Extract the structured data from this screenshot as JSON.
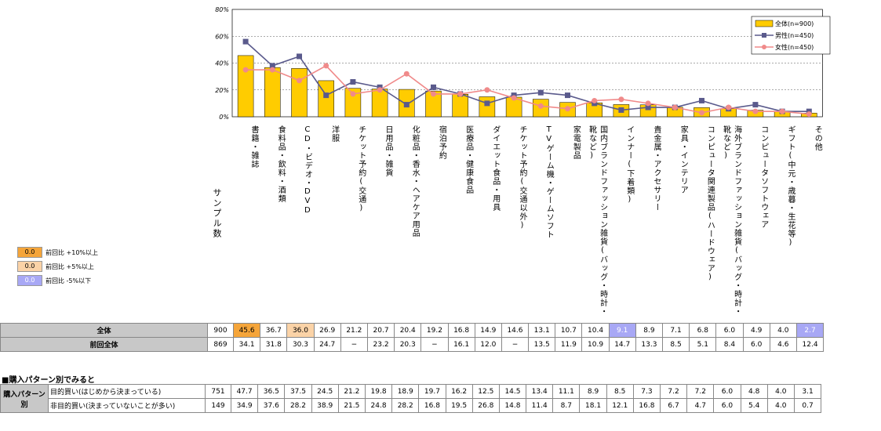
{
  "colors": {
    "bar": "#FFCC00",
    "male": "#5A5A8C",
    "female": "#F08A8A",
    "up10": "#F5A53A",
    "up5": "#FBD3A7",
    "down5": "#A8A8F5",
    "rowhead": "#C8C8C8"
  },
  "legend": {
    "total": "全体(n=900)",
    "male": "男性(n=450)",
    "female": "女性(n=450)"
  },
  "yticks": [
    "80%",
    "60%",
    "40%",
    "20%",
    "0%"
  ],
  "sample_label": "サンプル数",
  "highlight_legend": [
    {
      "value": "0.0",
      "label": "前回比 +10%以上"
    },
    {
      "value": "0.0",
      "label": "前回比 +5%以上"
    },
    {
      "value": "0.0",
      "label": "前回比 -5%以下"
    }
  ],
  "chart_data": {
    "type": "bar",
    "ylim": [
      0,
      80
    ],
    "categories": [
      "書籍・雑誌",
      "食料品・飲料・酒類",
      "CD・ビデオ・DVD",
      "洋服",
      "チケット予約(交通)",
      "日用品・雑貨",
      "化粧品・香水・ヘアケア用品",
      "宿泊予約",
      "医療品・健康食品",
      "ダイエット食品・用具",
      "チケット予約(交通以外)",
      "TVゲーム機・ゲームソフト",
      "家電製品",
      "国内ブランドファッション雑貨(バッグ・時計・靴など)",
      "インナー(下着類)",
      "貴金属・アクセサリー",
      "家具・インテリア",
      "コンピュータ関連製品(ハードウェア)",
      "海外ブランドファッション雑貨(バッグ・時計・靴など)",
      "コンピュータソフトウェア",
      "ギフト(中元・歳暮・生花等)",
      "その他"
    ],
    "series": [
      {
        "name": "全体(n=900)",
        "values": [
          45.6,
          36.7,
          36.0,
          26.9,
          21.2,
          20.7,
          20.4,
          19.2,
          16.8,
          14.9,
          14.6,
          13.1,
          10.7,
          10.4,
          9.1,
          8.9,
          7.1,
          6.8,
          6.0,
          4.9,
          4.0,
          2.7
        ]
      },
      {
        "name": "男性(n=450)",
        "values": [
          56,
          38,
          45,
          16,
          26,
          22,
          9,
          22,
          17,
          10,
          16,
          18,
          16,
          10,
          5,
          7,
          7,
          12,
          6,
          9,
          4,
          4
        ]
      },
      {
        "name": "女性(n=450)",
        "values": [
          35,
          35,
          27,
          38,
          17,
          20,
          32,
          17,
          17,
          20,
          14,
          8,
          6,
          12,
          13,
          10,
          7,
          3,
          7,
          4,
          4,
          2
        ]
      }
    ]
  },
  "table": {
    "rows": [
      {
        "label": "全体",
        "sample": "900",
        "values": [
          "45.6",
          "36.7",
          "36.0",
          "26.9",
          "21.2",
          "20.7",
          "20.4",
          "19.2",
          "16.8",
          "14.9",
          "14.6",
          "13.1",
          "10.7",
          "10.4",
          "9.1",
          "8.9",
          "7.1",
          "6.8",
          "6.0",
          "4.9",
          "4.0",
          "2.7"
        ],
        "marks": [
          "up10",
          "",
          "up5",
          "",
          "",
          "",
          "",
          "",
          "",
          "",
          "",
          "",
          "",
          "",
          "down5",
          "",
          "",
          "",
          "",
          "",
          "",
          "down5"
        ]
      },
      {
        "label": "前回全体",
        "sample": "869",
        "values": [
          "34.1",
          "31.8",
          "30.3",
          "24.7",
          "−",
          "23.2",
          "20.3",
          "−",
          "16.1",
          "12.0",
          "−",
          "13.5",
          "11.9",
          "10.9",
          "14.7",
          "13.3",
          "8.5",
          "5.1",
          "8.4",
          "6.0",
          "4.6",
          "12.4"
        ]
      }
    ]
  },
  "section": {
    "title": "■購入パターン別でみると",
    "group_label": "購入パターン別",
    "rows": [
      {
        "label": "目的買い(はじめから決まっている)",
        "sample": "751",
        "values": [
          "47.7",
          "36.5",
          "37.5",
          "24.5",
          "21.2",
          "19.8",
          "18.9",
          "19.7",
          "16.2",
          "12.5",
          "14.5",
          "13.4",
          "11.1",
          "8.9",
          "8.5",
          "7.3",
          "7.2",
          "7.2",
          "6.0",
          "4.8",
          "4.0",
          "3.1"
        ]
      },
      {
        "label": "非目的買い(決まっていないことが多い)",
        "sample": "149",
        "values": [
          "34.9",
          "37.6",
          "28.2",
          "38.9",
          "21.5",
          "24.8",
          "28.2",
          "16.8",
          "19.5",
          "26.8",
          "14.8",
          "11.4",
          "8.7",
          "18.1",
          "12.1",
          "16.8",
          "6.7",
          "4.7",
          "6.0",
          "5.4",
          "4.0",
          "0.7"
        ]
      }
    ]
  }
}
